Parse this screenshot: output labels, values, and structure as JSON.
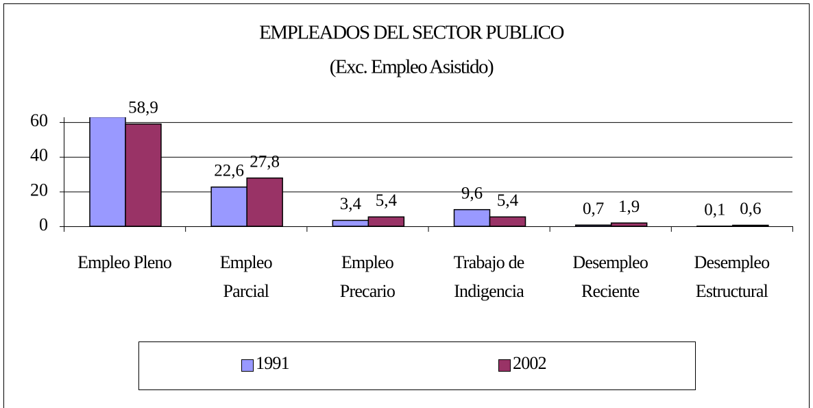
{
  "chart_data": {
    "type": "bar",
    "title": "EMPLEADOS DEL SECTOR PUBLICO",
    "subtitle": "(Exc. Empleo Asistido)",
    "categories": [
      [
        "Empleo Pleno"
      ],
      [
        "Empleo",
        "Parcial"
      ],
      [
        "Empleo",
        "Precario"
      ],
      [
        "Trabajo de",
        "Indigencia"
      ],
      [
        "Desempleo",
        "Reciente"
      ],
      [
        "Desempleo",
        "Estructural"
      ]
    ],
    "series": [
      {
        "name": "1991",
        "color": "#9999ff",
        "values": [
          63,
          22.6,
          3.4,
          9.6,
          0.7,
          0.1
        ],
        "value_labels": [
          null,
          "22,6",
          "3,4",
          "9,6",
          "0,7",
          "0,1"
        ]
      },
      {
        "name": "2002",
        "color": "#993366",
        "values": [
          58.9,
          27.8,
          5.4,
          5.4,
          1.9,
          0.6
        ],
        "value_labels": [
          "58,9",
          "27,8",
          "5,4",
          "5,4",
          "1,9",
          "0,6"
        ]
      }
    ],
    "ylim": [
      0,
      62.8
    ],
    "yticks": [
      0,
      20,
      40,
      60
    ],
    "grid": true,
    "legend": "bottom"
  }
}
